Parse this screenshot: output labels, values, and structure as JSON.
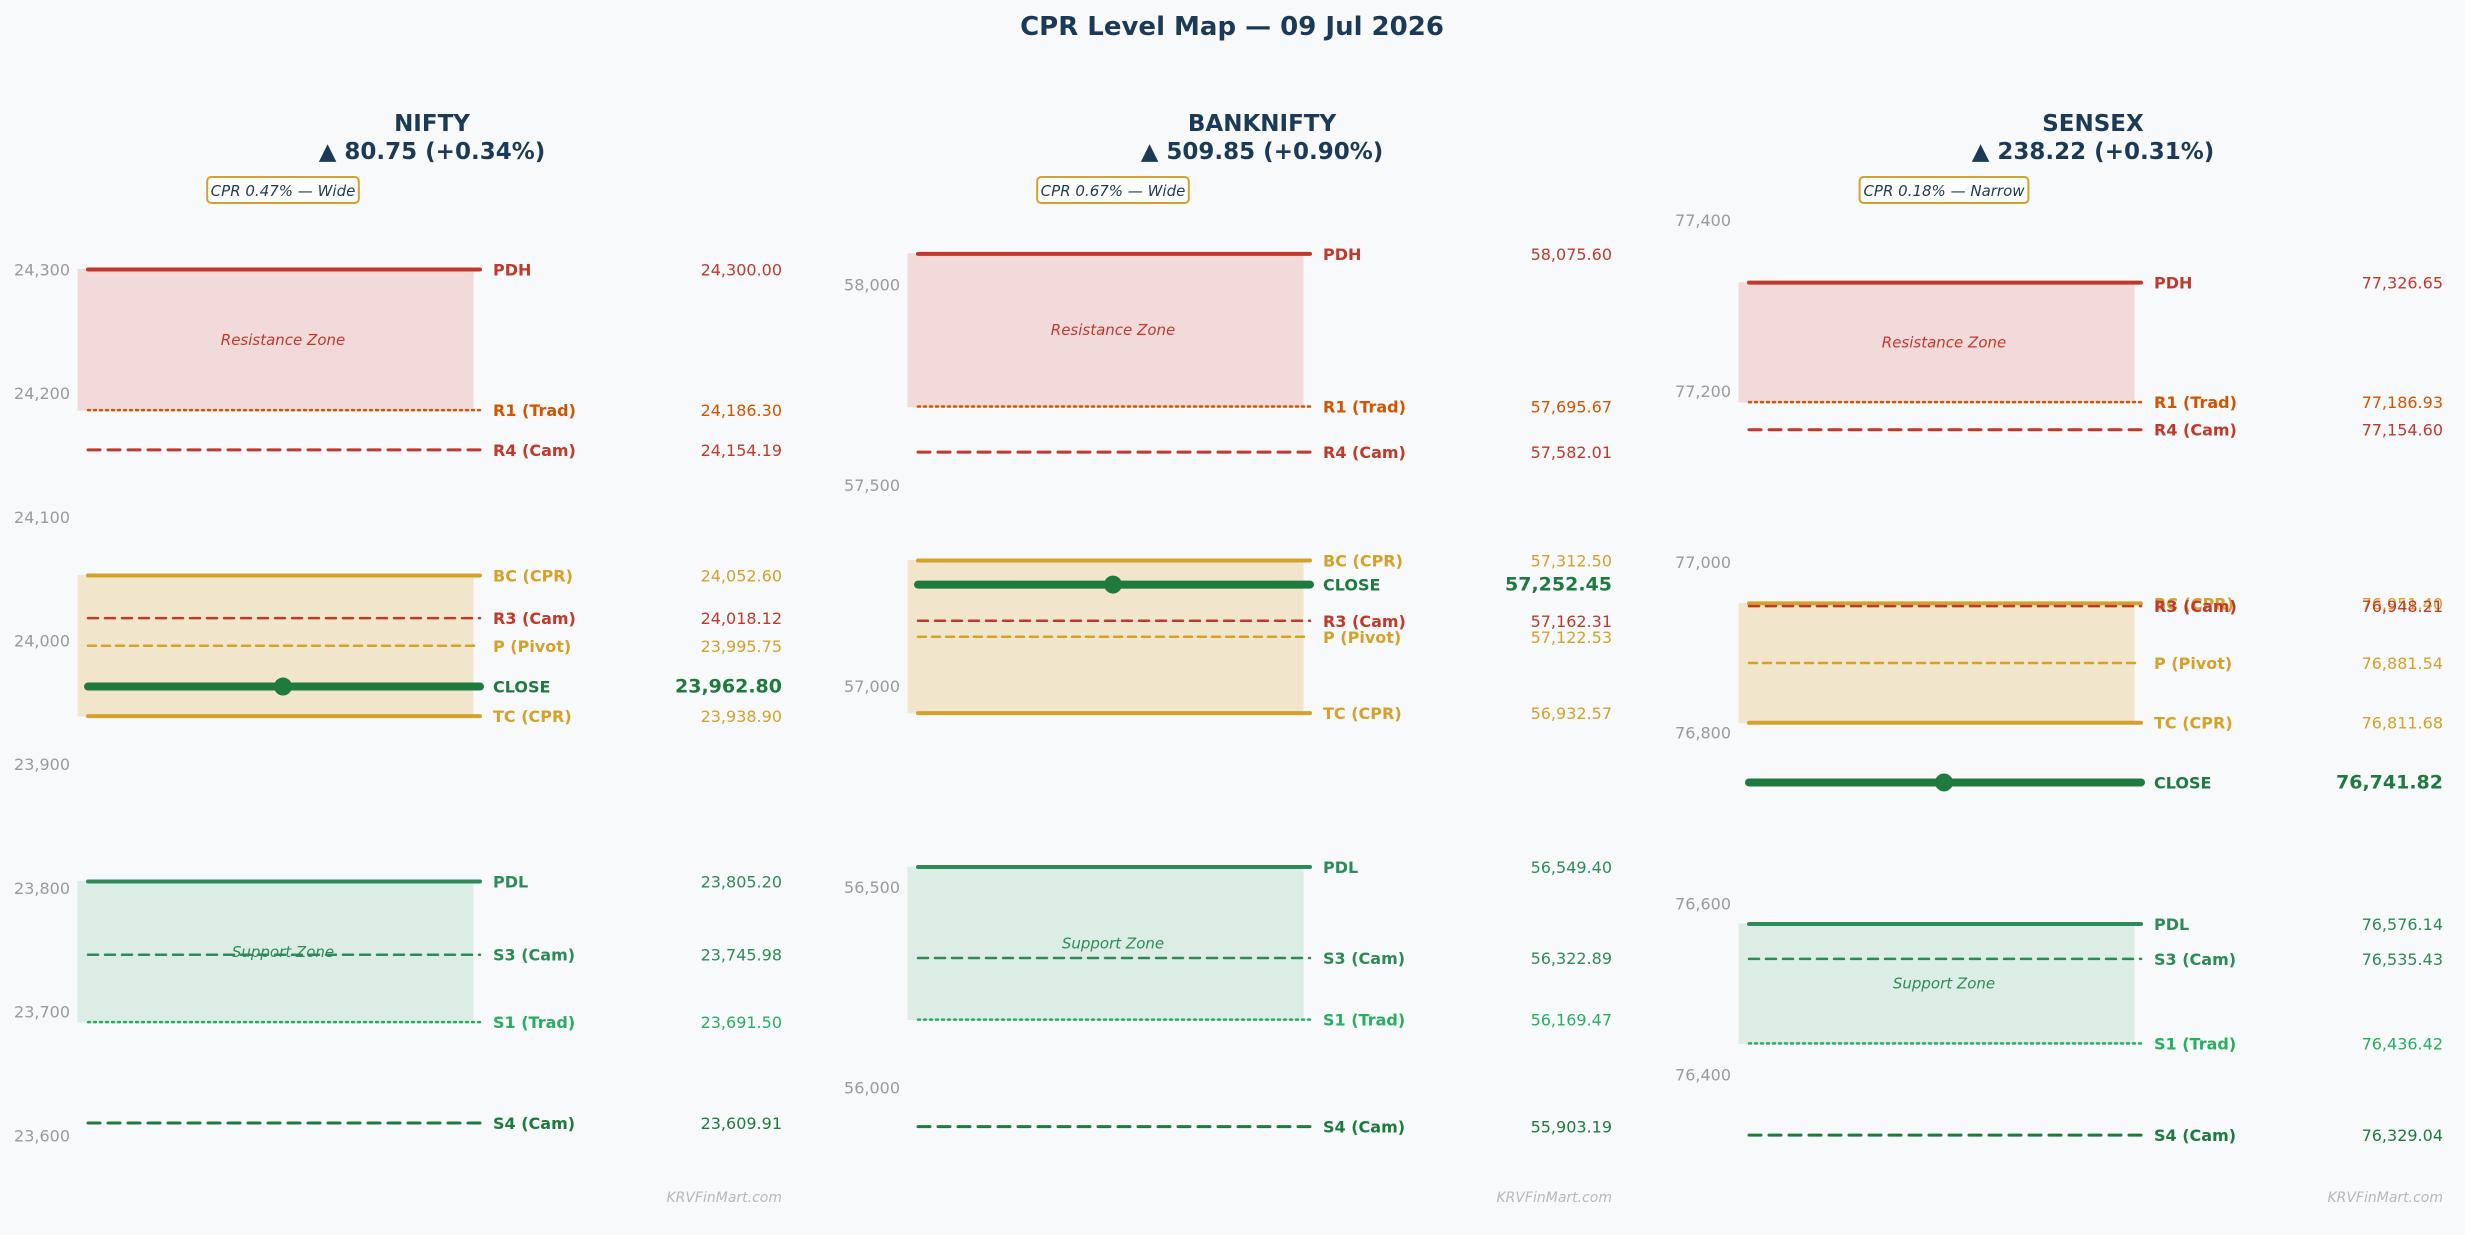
{
  "title": "CPR Level Map — 09 Jul 2026",
  "watermark": "KRVFinMart.com",
  "colors": {
    "background": "#f8f9fb",
    "title": "#1b3a57",
    "resistance_line": "#c0392b",
    "r1_trad": "#d35400",
    "cpr_gold": "#d4a12a",
    "close_green": "#1e7a3e",
    "support_green": "#2e8b57",
    "s1_trad": "#27ae60",
    "tick_gray": "#9a9a9a",
    "resistance_zone": "#f2d5d5",
    "cpr_zone": "#f0e3c3",
    "support_zone": "#d6ebe0"
  },
  "chart_data": [
    {
      "type": "level_map",
      "symbol": "NIFTY",
      "change_text": "▲ 80.75 (+0.34%)",
      "cpr_badge": "CPR 0.47% — Wide",
      "ylim": [
        23580,
        24340
      ],
      "yticks": [
        23600,
        23700,
        23800,
        23900,
        24000,
        24100,
        24200,
        24300
      ],
      "ytick_labels": [
        "23,600",
        "23,700",
        "23,800",
        "23,900",
        "24,000",
        "24,100",
        "24,200",
        "24,300"
      ],
      "zones": [
        {
          "label": "Resistance Zone",
          "kind": "resistance",
          "from": 24186.3,
          "to": 24300.0
        },
        {
          "label": "",
          "kind": "cpr",
          "from": 23938.9,
          "to": 24052.6
        },
        {
          "label": "Support Zone",
          "kind": "support",
          "from": 23691.5,
          "to": 23805.2
        }
      ],
      "levels": [
        {
          "label": "PDH",
          "value": 24300.0,
          "value_text": "24,300.00",
          "style": "pdh"
        },
        {
          "label": "R1 (Trad)",
          "value": 24186.3,
          "value_text": "24,186.30",
          "style": "r1"
        },
        {
          "label": "R4 (Cam)",
          "value": 24154.19,
          "value_text": "24,154.19",
          "style": "r4"
        },
        {
          "label": "BC (CPR)",
          "value": 24052.6,
          "value_text": "24,052.60",
          "style": "cpr"
        },
        {
          "label": "R3 (Cam)",
          "value": 24018.12,
          "value_text": "24,018.12",
          "style": "r3"
        },
        {
          "label": "P (Pivot)",
          "value": 23995.75,
          "value_text": "23,995.75",
          "style": "pivot"
        },
        {
          "label": "CLOSE",
          "value": 23962.8,
          "value_text": "23,962.80",
          "style": "close"
        },
        {
          "label": "TC (CPR)",
          "value": 23938.9,
          "value_text": "23,938.90",
          "style": "cpr"
        },
        {
          "label": "PDL",
          "value": 23805.2,
          "value_text": "23,805.20",
          "style": "pdl"
        },
        {
          "label": "S3 (Cam)",
          "value": 23745.98,
          "value_text": "23,745.98",
          "style": "s3"
        },
        {
          "label": "S1 (Trad)",
          "value": 23691.5,
          "value_text": "23,691.50",
          "style": "s1"
        },
        {
          "label": "S4 (Cam)",
          "value": 23609.91,
          "value_text": "23,609.91",
          "style": "s4"
        }
      ]
    },
    {
      "type": "level_map",
      "symbol": "BANKNIFTY",
      "change_text": "▲ 509.85 (+0.90%)",
      "cpr_badge": "CPR 0.67% — Wide",
      "ylim": [
        55820,
        58160
      ],
      "yticks": [
        56000,
        56500,
        57000,
        57500,
        58000
      ],
      "ytick_labels": [
        "56,000",
        "56,500",
        "57,000",
        "57,500",
        "58,000"
      ],
      "zones": [
        {
          "label": "Resistance Zone",
          "kind": "resistance",
          "from": 57695.67,
          "to": 58075.6
        },
        {
          "label": "",
          "kind": "cpr",
          "from": 56932.57,
          "to": 57312.5
        },
        {
          "label": "Support Zone",
          "kind": "support",
          "from": 56169.47,
          "to": 56549.4
        }
      ],
      "levels": [
        {
          "label": "PDH",
          "value": 58075.6,
          "value_text": "58,075.60",
          "style": "pdh"
        },
        {
          "label": "R1 (Trad)",
          "value": 57695.67,
          "value_text": "57,695.67",
          "style": "r1"
        },
        {
          "label": "R4 (Cam)",
          "value": 57582.01,
          "value_text": "57,582.01",
          "style": "r4"
        },
        {
          "label": "BC (CPR)",
          "value": 57312.5,
          "value_text": "57,312.50",
          "style": "cpr"
        },
        {
          "label": "CLOSE",
          "value": 57252.45,
          "value_text": "57,252.45",
          "style": "close"
        },
        {
          "label": "R3 (Cam)",
          "value": 57162.31,
          "value_text": "57,162.31",
          "style": "r3"
        },
        {
          "label": "P (Pivot)",
          "value": 57122.53,
          "value_text": "57,122.53",
          "style": "pivot"
        },
        {
          "label": "TC (CPR)",
          "value": 56932.57,
          "value_text": "56,932.57",
          "style": "cpr"
        },
        {
          "label": "PDL",
          "value": 56549.4,
          "value_text": "56,549.40",
          "style": "pdl"
        },
        {
          "label": "S3 (Cam)",
          "value": 56322.89,
          "value_text": "56,322.89",
          "style": "s3"
        },
        {
          "label": "S1 (Trad)",
          "value": 56169.47,
          "value_text": "56,169.47",
          "style": "s1"
        },
        {
          "label": "S4 (Cam)",
          "value": 55903.19,
          "value_text": "55,903.19",
          "style": "s4"
        }
      ]
    },
    {
      "type": "level_map",
      "symbol": "SENSEX",
      "change_text": "▲ 238.22 (+0.31%)",
      "cpr_badge": "CPR 0.18% — Narrow",
      "ylim": [
        76300,
        77400
      ],
      "yticks": [
        76400,
        76600,
        76800,
        77000,
        77200,
        77400
      ],
      "ytick_labels": [
        "76,400",
        "76,600",
        "76,800",
        "77,000",
        "77,200",
        "77,400"
      ],
      "zones": [
        {
          "label": "Resistance Zone",
          "kind": "resistance",
          "from": 77186.93,
          "to": 77326.65
        },
        {
          "label": "",
          "kind": "cpr",
          "from": 76811.68,
          "to": 76951.4
        },
        {
          "label": "Support Zone",
          "kind": "support",
          "from": 76436.42,
          "to": 76576.14
        }
      ],
      "levels": [
        {
          "label": "PDH",
          "value": 77326.65,
          "value_text": "77,326.65",
          "style": "pdh"
        },
        {
          "label": "R1 (Trad)",
          "value": 77186.93,
          "value_text": "77,186.93",
          "style": "r1"
        },
        {
          "label": "R4 (Cam)",
          "value": 77154.6,
          "value_text": "77,154.60",
          "style": "r4"
        },
        {
          "label": "BC (CPR)",
          "value": 76951.4,
          "value_text": "76,951.40",
          "style": "cpr"
        },
        {
          "label": "R3 (Cam)",
          "value": 76948.21,
          "value_text": "76,948.21",
          "style": "r3"
        },
        {
          "label": "P (Pivot)",
          "value": 76881.54,
          "value_text": "76,881.54",
          "style": "pivot"
        },
        {
          "label": "TC (CPR)",
          "value": 76811.68,
          "value_text": "76,811.68",
          "style": "cpr"
        },
        {
          "label": "CLOSE",
          "value": 76741.82,
          "value_text": "76,741.82",
          "style": "close"
        },
        {
          "label": "PDL",
          "value": 76576.14,
          "value_text": "76,576.14",
          "style": "pdl"
        },
        {
          "label": "S3 (Cam)",
          "value": 76535.43,
          "value_text": "76,535.43",
          "style": "s3"
        },
        {
          "label": "S1 (Trad)",
          "value": 76436.42,
          "value_text": "76,436.42",
          "style": "s1"
        },
        {
          "label": "S4 (Cam)",
          "value": 76329.04,
          "value_text": "76,329.04",
          "style": "s4"
        }
      ]
    }
  ]
}
